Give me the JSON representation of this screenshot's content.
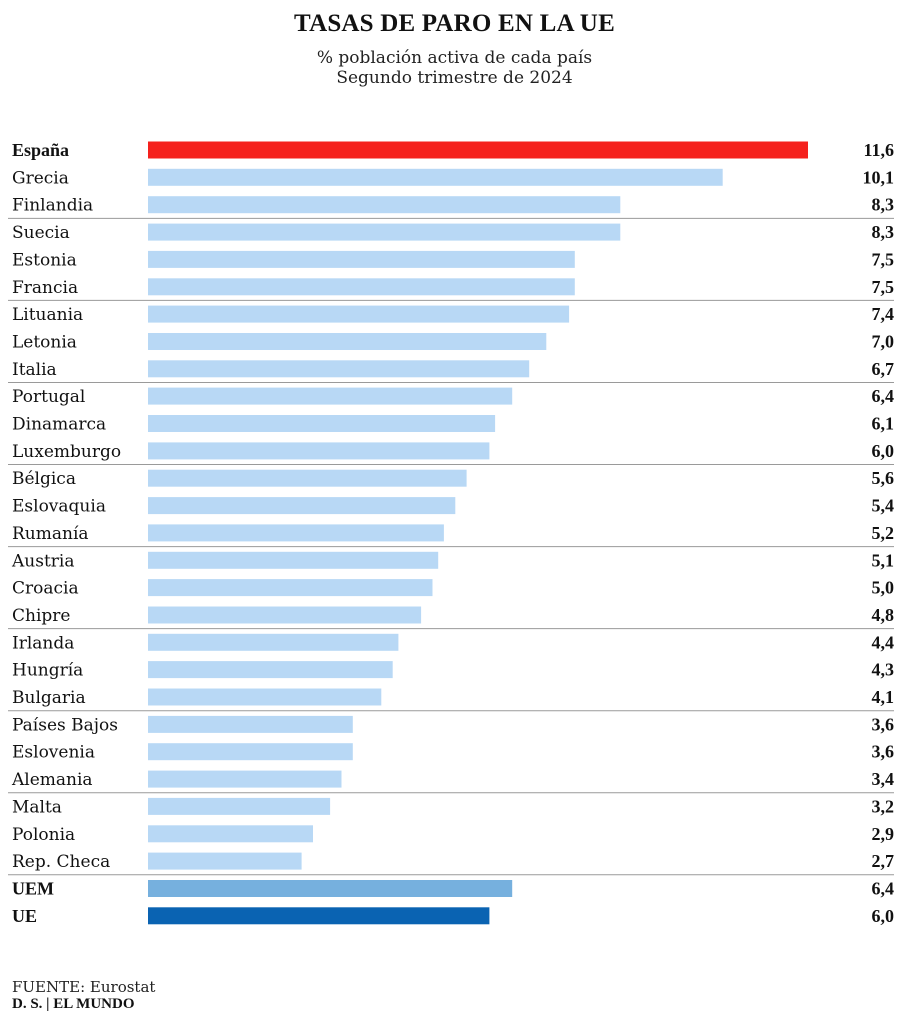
{
  "header": {
    "title": "TASAS DE PARO EN LA UE",
    "subtitle_line1": "% población activa de cada país",
    "subtitle_line2": "Segundo trimestre de 2024"
  },
  "chart_data": {
    "type": "bar",
    "orientation": "horizontal",
    "categories": [
      "España",
      "Grecia",
      "Finlandia",
      "Suecia",
      "Estonia",
      "Francia",
      "Lituania",
      "Letonia",
      "Italia",
      "Portugal",
      "Dinamarca",
      "Luxemburgo",
      "Bélgica",
      "Eslovaquia",
      "Rumanía",
      "Austria",
      "Croacia",
      "Chipre",
      "Irlanda",
      "Hungría",
      "Bulgaria",
      "Países Bajos",
      "Eslovenia",
      "Alemania",
      "Malta",
      "Polonia",
      "Rep. Checa",
      "UEM",
      "UE"
    ],
    "values": [
      11.6,
      10.1,
      8.3,
      8.3,
      7.5,
      7.5,
      7.4,
      7.0,
      6.7,
      6.4,
      6.1,
      6.0,
      5.6,
      5.4,
      5.2,
      5.1,
      5.0,
      4.8,
      4.4,
      4.3,
      4.1,
      3.6,
      3.6,
      3.4,
      3.2,
      2.9,
      2.7,
      6.4,
      6.0
    ],
    "value_labels": [
      "11,6",
      "10,1",
      "8,3",
      "8,3",
      "7,5",
      "7,5",
      "7,4",
      "7,0",
      "6,7",
      "6,4",
      "6,1",
      "6,0",
      "5,6",
      "5,4",
      "5,2",
      "5,1",
      "5,0",
      "4,8",
      "4,4",
      "4,3",
      "4,1",
      "3,6",
      "3,6",
      "3,4",
      "3,2",
      "2,9",
      "2,7",
      "6,4",
      "6,0"
    ],
    "bold_categories": [
      "España",
      "UEM",
      "UE"
    ],
    "colors": {
      "highlight": "#f5211d",
      "default": "#b8d8f5",
      "uem": "#76b0de",
      "ue": "#0a63b2",
      "separator": "#9a9a9a"
    },
    "group_size": 3
  },
  "footer": {
    "source_label": "FUENTE:",
    "source_value": " Eurostat",
    "credit": "D. S. | EL MUNDO"
  }
}
